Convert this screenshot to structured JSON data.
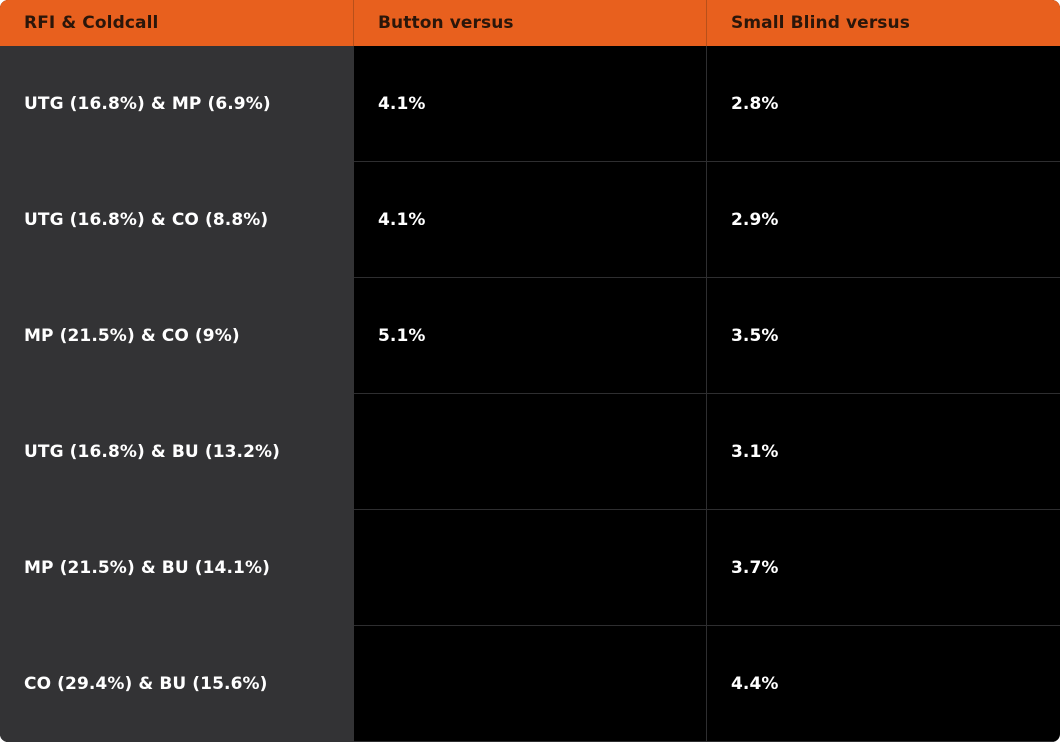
{
  "table": {
    "header": [
      "RFI & Coldcall",
      "Button versus",
      "Small Blind versus"
    ],
    "rows": [
      {
        "label": "UTG (16.8%) & MP (6.9%)",
        "button": "4.1%",
        "small_blind": "2.8%"
      },
      {
        "label": "UTG (16.8%) & CO (8.8%)",
        "button": "4.1%",
        "small_blind": "2.9%"
      },
      {
        "label": "MP (21.5%) & CO (9%)",
        "button": "5.1%",
        "small_blind": "3.5%"
      },
      {
        "label": "UTG (16.8%) & BU (13.2%)",
        "small_blind": "3.1%"
      },
      {
        "label": "MP (21.5%) & BU (14.1%)",
        "small_blind": "3.7%"
      },
      {
        "label": "CO (29.4%) & BU (15.6%)",
        "small_blind": "4.4%"
      }
    ]
  }
}
